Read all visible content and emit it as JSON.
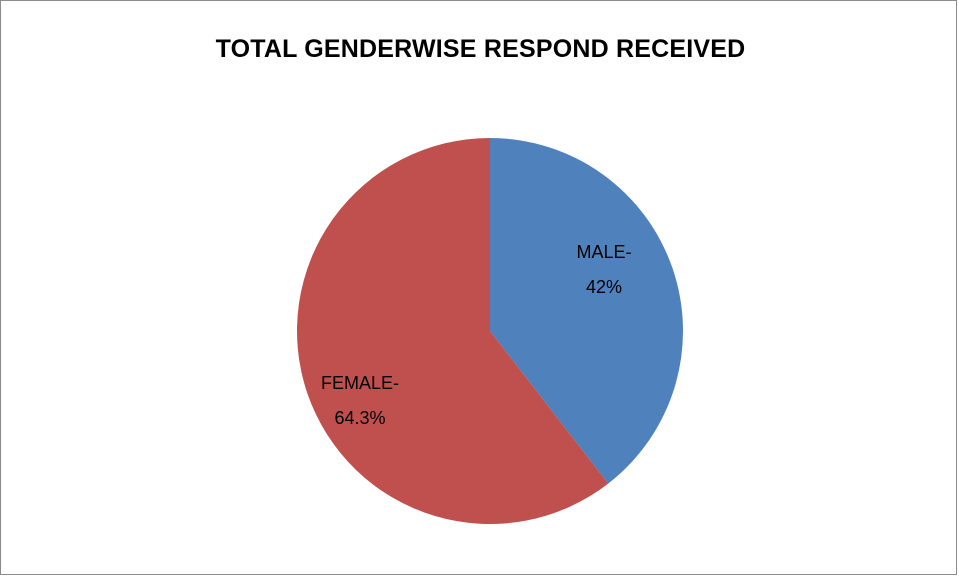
{
  "chart_data": {
    "type": "pie",
    "title": "TOTAL GENDERWISE RESPOND RECEIVED",
    "slices": [
      {
        "label_line1": "MALE-",
        "label_line2": "42%",
        "value": 42,
        "color": "#4F81BD"
      },
      {
        "label_line1": "FEMALE-",
        "label_line2": "64.3%",
        "value": 64.3,
        "color": "#C0504D"
      }
    ],
    "legend": "none",
    "start_angle": "12 o'clock",
    "direction": "clockwise"
  }
}
